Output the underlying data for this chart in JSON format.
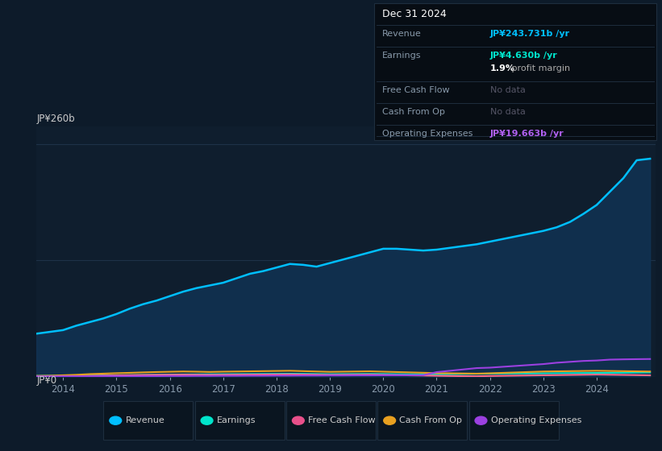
{
  "background_color": "#0d1b2a",
  "plot_bg_color": "#0f1e2e",
  "y_label": "JP¥260b",
  "y_zero_label": "JP¥0",
  "ylim": [
    0,
    280
  ],
  "years": [
    2013.5,
    2013.75,
    2014.0,
    2014.25,
    2014.5,
    2014.75,
    2015.0,
    2015.25,
    2015.5,
    2015.75,
    2016.0,
    2016.25,
    2016.5,
    2016.75,
    2017.0,
    2017.25,
    2017.5,
    2017.75,
    2018.0,
    2018.25,
    2018.5,
    2018.75,
    2019.0,
    2019.25,
    2019.5,
    2019.75,
    2020.0,
    2020.25,
    2020.5,
    2020.75,
    2021.0,
    2021.25,
    2021.5,
    2021.75,
    2022.0,
    2022.25,
    2022.5,
    2022.75,
    2023.0,
    2023.25,
    2023.5,
    2023.75,
    2024.0,
    2024.25,
    2024.5,
    2024.75,
    2025.0
  ],
  "revenue": [
    48,
    50,
    52,
    57,
    61,
    65,
    70,
    76,
    81,
    85,
    90,
    95,
    99,
    102,
    105,
    110,
    115,
    118,
    122,
    126,
    125,
    123,
    127,
    131,
    135,
    139,
    143,
    143,
    142,
    141,
    142,
    144,
    146,
    148,
    151,
    154,
    157,
    160,
    163,
    167,
    173,
    182,
    192,
    207,
    222,
    242,
    243.731
  ],
  "earnings": [
    0.8,
    0.9,
    1.0,
    1.1,
    1.2,
    1.3,
    1.5,
    1.6,
    1.8,
    2.0,
    2.2,
    2.4,
    2.5,
    2.6,
    2.7,
    2.8,
    2.9,
    3.0,
    3.1,
    3.2,
    3.1,
    2.9,
    2.7,
    2.8,
    2.9,
    3.0,
    2.9,
    2.7,
    2.6,
    2.5,
    2.6,
    2.7,
    2.9,
    3.1,
    3.3,
    3.4,
    3.5,
    3.6,
    3.7,
    3.8,
    3.9,
    4.0,
    4.1,
    4.2,
    4.3,
    4.5,
    4.63
  ],
  "free_cash_flow": [
    0.4,
    0.4,
    0.5,
    0.7,
    0.9,
    1.1,
    1.3,
    1.5,
    1.7,
    1.9,
    2.0,
    2.1,
    2.0,
    1.9,
    2.0,
    2.1,
    2.2,
    2.3,
    2.4,
    2.5,
    2.3,
    2.1,
    1.9,
    2.0,
    2.1,
    2.2,
    1.9,
    1.7,
    1.4,
    1.2,
    0.9,
    0.7,
    0.5,
    0.4,
    0.7,
    0.9,
    1.1,
    1.3,
    1.5,
    1.7,
    1.9,
    2.1,
    2.3,
    2.1,
    1.9,
    1.7,
    1.4
  ],
  "cash_from_op": [
    0.8,
    1.0,
    1.5,
    2.0,
    2.8,
    3.3,
    3.8,
    4.2,
    4.7,
    5.1,
    5.4,
    5.7,
    5.5,
    5.2,
    5.5,
    5.7,
    5.9,
    6.1,
    6.3,
    6.5,
    6.1,
    5.7,
    5.3,
    5.5,
    5.7,
    5.9,
    5.5,
    5.1,
    4.7,
    4.3,
    3.9,
    3.7,
    3.5,
    3.3,
    3.7,
    4.2,
    4.7,
    5.2,
    5.7,
    5.9,
    6.1,
    6.3,
    6.5,
    6.3,
    6.1,
    5.9,
    5.7
  ],
  "operating_expenses": [
    0.3,
    0.3,
    0.4,
    0.4,
    0.4,
    0.5,
    0.5,
    0.5,
    0.6,
    0.6,
    0.7,
    0.7,
    0.8,
    0.8,
    0.9,
    0.9,
    1.0,
    1.0,
    1.1,
    1.1,
    1.2,
    1.2,
    1.3,
    1.3,
    1.4,
    1.4,
    1.5,
    1.5,
    1.6,
    1.6,
    5.0,
    6.5,
    8.0,
    9.5,
    10.0,
    11.0,
    12.0,
    13.0,
    14.0,
    15.5,
    16.5,
    17.5,
    18.0,
    19.0,
    19.3,
    19.5,
    19.663
  ],
  "revenue_color": "#00bfff",
  "revenue_fill_dark": "#0d2640",
  "revenue_fill_mid": "#14385a",
  "earnings_color": "#00e5cc",
  "free_cash_flow_color": "#ff6b8a",
  "cash_from_op_color": "#e8a020",
  "operating_expenses_color": "#9b40e0",
  "xticks": [
    2014,
    2015,
    2016,
    2017,
    2018,
    2019,
    2020,
    2021,
    2022,
    2023,
    2024
  ],
  "info_box": {
    "title": "Dec 31 2024",
    "title_color": "#ffffff",
    "rows": [
      {
        "label": "Revenue",
        "value": "JP¥243.731b /yr",
        "value_color": "#00bfff",
        "note": null
      },
      {
        "label": "Earnings",
        "value": "JP¥4.630b /yr",
        "value_color": "#00e5cc",
        "note": "1.9% profit margin",
        "note_bold": "1.9%"
      },
      {
        "label": "Free Cash Flow",
        "value": "No data",
        "value_color": "#555566",
        "note": null
      },
      {
        "label": "Cash From Op",
        "value": "No data",
        "value_color": "#555566",
        "note": null
      },
      {
        "label": "Operating Expenses",
        "value": "JP¥19.663b /yr",
        "value_color": "#b060f0",
        "note": null
      }
    ]
  },
  "legend_items": [
    {
      "label": "Revenue",
      "color": "#00bfff"
    },
    {
      "label": "Earnings",
      "color": "#00e5cc"
    },
    {
      "label": "Free Cash Flow",
      "color": "#e8508a"
    },
    {
      "label": "Cash From Op",
      "color": "#e8a020"
    },
    {
      "label": "Operating Expenses",
      "color": "#9b40e0"
    }
  ]
}
